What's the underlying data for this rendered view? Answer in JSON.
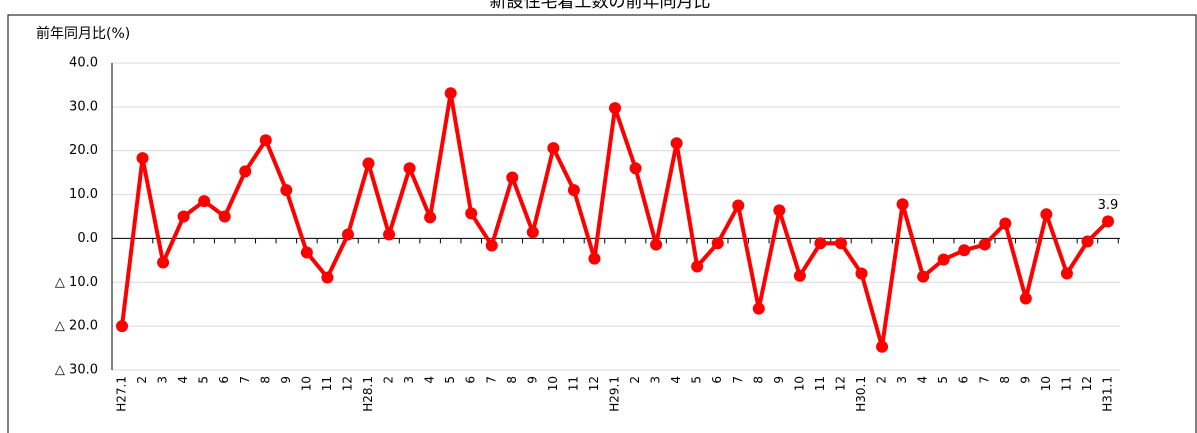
{
  "chart_data": {
    "type": "line",
    "title": "新設住宅着工数の前年同月比",
    "y_label": "前年同月比(%)",
    "categories": [
      "H27.1",
      "2",
      "3",
      "4",
      "5",
      "6",
      "7",
      "8",
      "9",
      "10",
      "11",
      "12",
      "H28.1",
      "2",
      "3",
      "4",
      "5",
      "6",
      "7",
      "8",
      "9",
      "10",
      "11",
      "12",
      "H29.1",
      "2",
      "3",
      "4",
      "5",
      "6",
      "7",
      "8",
      "9",
      "10",
      "11",
      "12",
      "H30.1",
      "2",
      "3",
      "4",
      "5",
      "6",
      "7",
      "8",
      "9",
      "10",
      "11",
      "12",
      "H31.1"
    ],
    "series": [
      {
        "name": "前年同月比",
        "color": "#ff0000",
        "values": [
          -20.0,
          18.3,
          -5.5,
          5.0,
          8.5,
          5.0,
          15.3,
          22.4,
          11.0,
          -3.2,
          -8.9,
          0.9,
          17.1,
          0.9,
          16.0,
          4.8,
          33.1,
          5.7,
          -1.6,
          13.9,
          1.4,
          20.6,
          11.0,
          -4.6,
          29.7,
          16.0,
          -1.4,
          21.7,
          -6.4,
          -1.1,
          7.5,
          -16.0,
          6.4,
          -8.5,
          -1.1,
          -1.1,
          -8.0,
          -24.7,
          7.8,
          -8.7,
          -4.8,
          -2.7,
          -1.4,
          3.4,
          -13.7,
          5.5,
          -8.0,
          -0.7,
          3.9
        ]
      }
    ],
    "labeled_points": [
      48
    ],
    "ylim": [
      -30,
      40
    ],
    "yticks": [
      {
        "value": 40,
        "label": "40.0"
      },
      {
        "value": 30,
        "label": "30.0"
      },
      {
        "value": 20,
        "label": "20.0"
      },
      {
        "value": 10,
        "label": "10.0"
      },
      {
        "value": 0,
        "label": "0.0"
      },
      {
        "value": -10,
        "label": "△ 10.0"
      },
      {
        "value": -20,
        "label": "△ 20.0"
      },
      {
        "value": -30,
        "label": "△ 30.0"
      }
    ],
    "grid": true
  }
}
